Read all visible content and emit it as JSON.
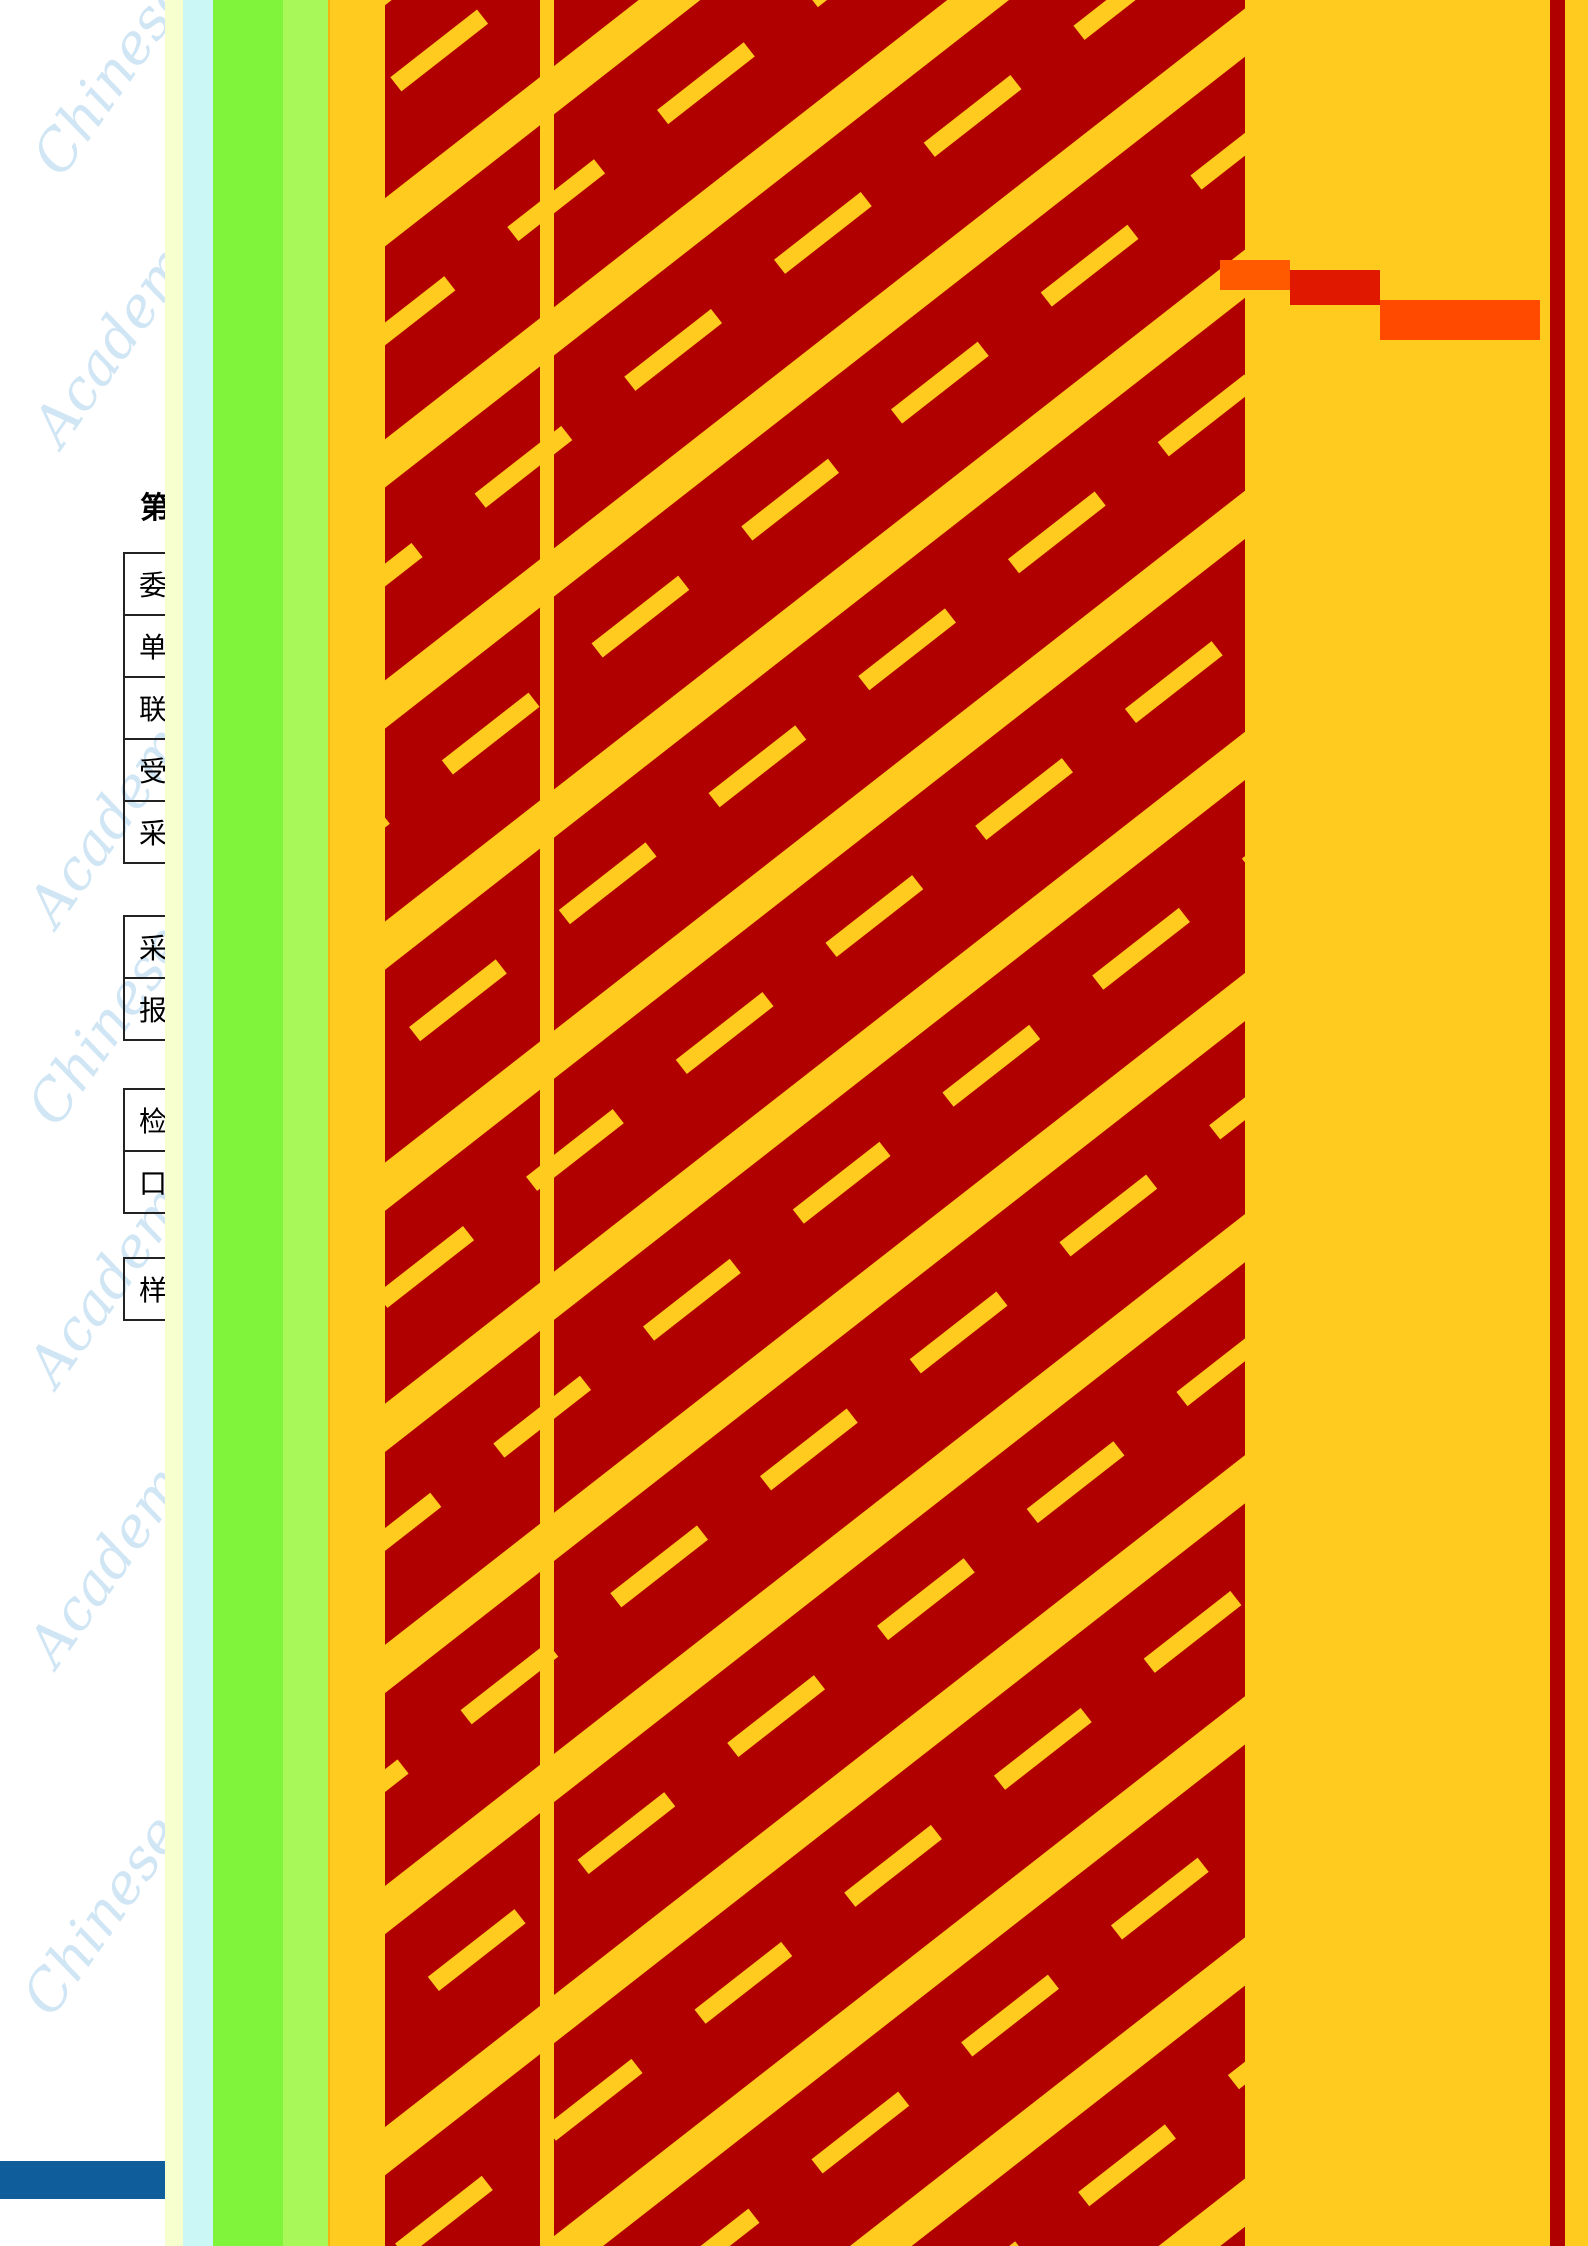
{
  "document": {
    "section_heading": "第",
    "watermark_lines": [
      "Chinese Academy of Science Testing",
      "Academy of Science",
      "Academy of Science",
      "Chinese Academy of Science",
      "Academy of Science",
      "Academy of Science",
      "Chinese Academy of Science"
    ],
    "table_group_1": [
      "委",
      "单",
      "联",
      "受",
      "采"
    ],
    "table_group_2": [
      "采",
      "报"
    ],
    "table_group_3": [
      "检",
      "口"
    ],
    "table_group_4": [
      "样"
    ]
  },
  "colors": {
    "dark_red": "#b10000",
    "yellow": "#ffcb1e",
    "orange": "#f5b50f",
    "green": "#7ff43a",
    "light_green": "#a8f85a",
    "cyan": "#cbf7f7",
    "pale_yellow": "#f7ffcf",
    "blue_bar": "#0f5d9b"
  }
}
